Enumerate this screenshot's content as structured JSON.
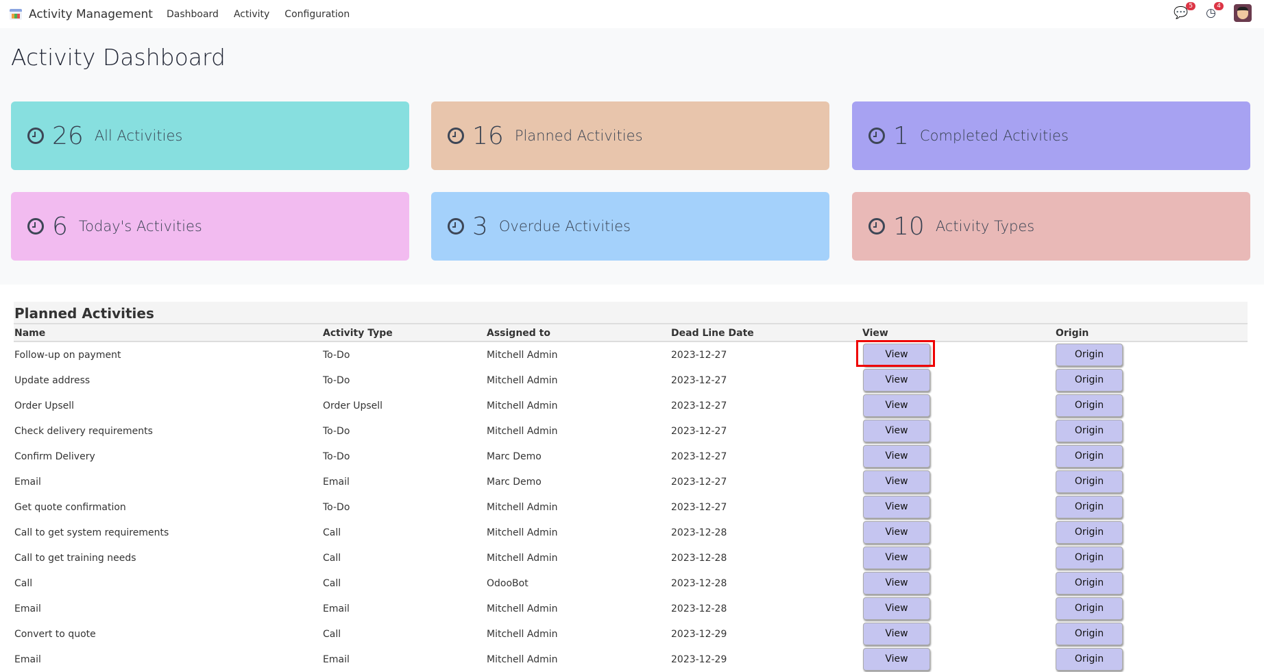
{
  "header": {
    "app_title": "Activity Management",
    "nav": [
      "Dashboard",
      "Activity",
      "Configuration"
    ],
    "messages_badge": "5",
    "activities_badge": "4"
  },
  "page_title": "Activity Dashboard",
  "cards": [
    {
      "count": "26",
      "label": "All Activities",
      "color": "#87dfdf"
    },
    {
      "count": "16",
      "label": "Planned Activities",
      "color": "#e8c5ac"
    },
    {
      "count": "1",
      "label": "Completed Activities",
      "color": "#a7a2f2"
    },
    {
      "count": "6",
      "label": "Today's Activities",
      "color": "#f2bbf0"
    },
    {
      "count": "3",
      "label": "Overdue Activities",
      "color": "#a4d1fb"
    },
    {
      "count": "10",
      "label": "Activity Types",
      "color": "#e9b9b7"
    }
  ],
  "table": {
    "title": "Planned Activities",
    "columns": [
      "Name",
      "Activity Type",
      "Assigned to",
      "Dead Line Date",
      "View",
      "Origin"
    ],
    "view_label": "View",
    "origin_label": "Origin",
    "rows": [
      [
        "Follow-up on payment",
        "To-Do",
        "Mitchell Admin",
        "2023-12-27"
      ],
      [
        "Update address",
        "To-Do",
        "Mitchell Admin",
        "2023-12-27"
      ],
      [
        "Order Upsell",
        "Order Upsell",
        "Mitchell Admin",
        "2023-12-27"
      ],
      [
        "Check delivery requirements",
        "To-Do",
        "Mitchell Admin",
        "2023-12-27"
      ],
      [
        "Confirm Delivery",
        "To-Do",
        "Marc Demo",
        "2023-12-27"
      ],
      [
        "Email",
        "Email",
        "Marc Demo",
        "2023-12-27"
      ],
      [
        "Get quote confirmation",
        "To-Do",
        "Mitchell Admin",
        "2023-12-27"
      ],
      [
        "Call to get system requirements",
        "Call",
        "Mitchell Admin",
        "2023-12-28"
      ],
      [
        "Call to get training needs",
        "Call",
        "Mitchell Admin",
        "2023-12-28"
      ],
      [
        "Call",
        "Call",
        "OdooBot",
        "2023-12-28"
      ],
      [
        "Email",
        "Email",
        "Mitchell Admin",
        "2023-12-28"
      ],
      [
        "Convert to quote",
        "Call",
        "Mitchell Admin",
        "2023-12-29"
      ],
      [
        "Email",
        "Email",
        "Mitchell Admin",
        "2023-12-29"
      ]
    ]
  }
}
